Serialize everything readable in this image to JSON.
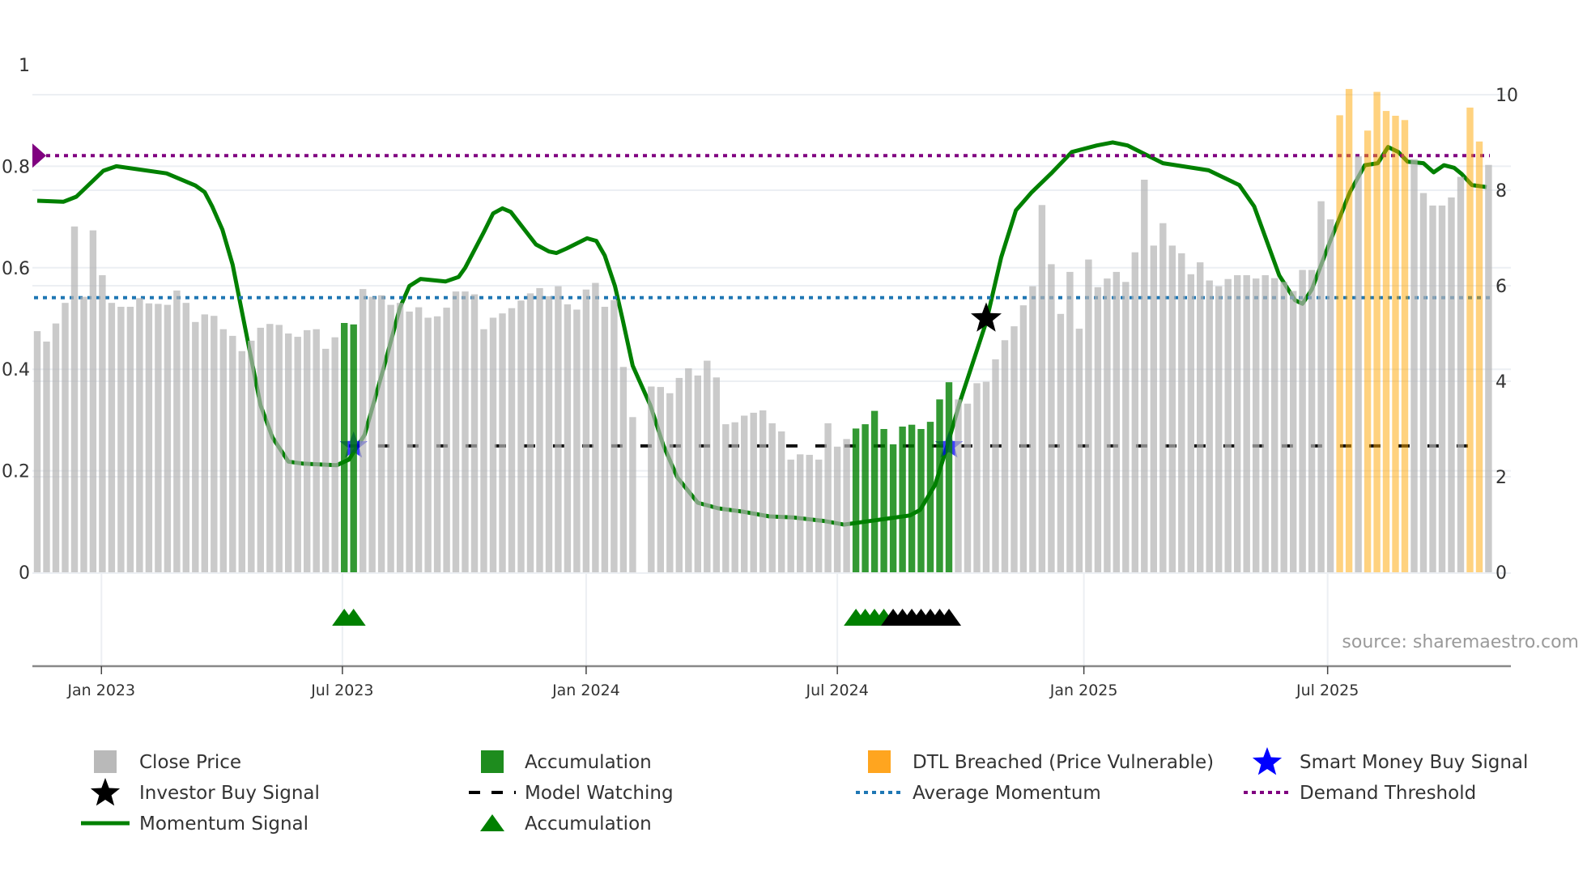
{
  "source_text": "source: sharemaestro.com",
  "colors": {
    "close": "#b4b4b4",
    "accumulation_bar": "#008000",
    "dtl": "#ffa500",
    "momentum": "#008000",
    "average_momentum": "#1f77b4",
    "demand_threshold": "#800080",
    "smart_money": "#0000ff",
    "investor": "#000000",
    "model_watching": "#111111"
  },
  "legend": [
    {
      "label": "Close Price",
      "icon": "gray-square-icon"
    },
    {
      "label": "Accumulation",
      "icon": "green-square-icon"
    },
    {
      "label": "DTL Breached (Price Vulnerable)",
      "icon": "orange-square-icon"
    },
    {
      "label": "Smart Money Buy Signal",
      "icon": "blue-star-icon"
    },
    {
      "label": "Investor Buy Signal",
      "icon": "black-star-icon"
    },
    {
      "label": "Model Watching",
      "icon": "dashed-line-icon"
    },
    {
      "label": "Average Momentum",
      "icon": "blue-dotted-line-icon"
    },
    {
      "label": "Demand Threshold",
      "icon": "purple-dotted-line-icon"
    },
    {
      "label": "Momentum Signal",
      "icon": "green-line-icon"
    },
    {
      "label": "Accumulation",
      "icon": "green-triangle-icon"
    }
  ],
  "chart_data": {
    "type": "bar",
    "x_unit": "week index (weekly bars)",
    "xticks": [
      {
        "label": "Jan 2023",
        "week": 6.9
      },
      {
        "label": "Jul 2023",
        "week": 32.8
      },
      {
        "label": "Jan 2024",
        "week": 59.0
      },
      {
        "label": "Jul 2024",
        "week": 86.0
      },
      {
        "label": "Jan 2025",
        "week": 112.5
      },
      {
        "label": "Jul 2025",
        "week": 138.7
      }
    ],
    "y_left": {
      "ylim": [
        0,
        1
      ],
      "ticks": [
        "0",
        "0.2",
        "0.4",
        "0.6",
        "0.8",
        "1"
      ],
      "tick_values": [
        0,
        0.2,
        0.4,
        0.6,
        0.8,
        1
      ]
    },
    "y_right": {
      "ylim": [
        0,
        10
      ],
      "ticks": [
        "0",
        "2",
        "4",
        "6",
        "8",
        "10"
      ],
      "tick_values": [
        0,
        2,
        4,
        6,
        8,
        10
      ]
    },
    "close_price": [
      5.05,
      4.83,
      5.21,
      5.64,
      7.24,
      5.77,
      7.16,
      6.22,
      5.64,
      5.56,
      5.56,
      5.74,
      5.63,
      5.62,
      5.6,
      5.9,
      5.64,
      5.24,
      5.4,
      5.37,
      5.09,
      4.95,
      4.63,
      4.85,
      5.12,
      5.2,
      5.18,
      5.0,
      4.93,
      5.07,
      5.09,
      4.68,
      4.92,
      5.22,
      5.19,
      5.93,
      5.77,
      5.8,
      5.6,
      5.64,
      5.46,
      5.55,
      5.33,
      5.36,
      5.54,
      5.88,
      5.88,
      5.82,
      5.09,
      5.33,
      5.42,
      5.53,
      5.69,
      5.84,
      5.95,
      5.78,
      5.99,
      5.61,
      5.5,
      5.92,
      6.06,
      5.56,
      5.7,
      4.3,
      3.25,
      null,
      3.89,
      3.88,
      3.75,
      4.07,
      4.27,
      4.12,
      4.43,
      4.08,
      3.1,
      3.14,
      3.28,
      3.34,
      3.39,
      3.12,
      2.95,
      2.36,
      2.47,
      2.46,
      2.36,
      3.12,
      2.63,
      2.79,
      3.01,
      3.1,
      3.38,
      3.0,
      2.68,
      3.05,
      3.09,
      3.0,
      3.15,
      3.62,
      3.98,
      3.62,
      3.53,
      3.96,
      3.99,
      4.46,
      4.86,
      5.15,
      5.59,
      5.99,
      7.69,
      6.45,
      5.41,
      6.29,
      5.1,
      6.55,
      5.97,
      6.15,
      6.29,
      6.08,
      6.7,
      8.22,
      6.84,
      7.31,
      6.84,
      6.68,
      6.24,
      6.49,
      6.11,
      5.99,
      6.14,
      6.22,
      6.22,
      6.15,
      6.22,
      6.16,
      6.08,
      5.89,
      6.33,
      6.33,
      7.77,
      7.39,
      9.57,
      10.12,
      8.71,
      9.25,
      10.06,
      9.66,
      9.56,
      9.47,
      8.65,
      7.94,
      7.68,
      7.68,
      7.85,
      8.28,
      9.73,
      9.02,
      8.53
    ],
    "accumulation_weeks": [
      33,
      34,
      88,
      89,
      90,
      91,
      92,
      93,
      94,
      95,
      96,
      97,
      98
    ],
    "dtl_breached_weeks": [
      140,
      141,
      143,
      144,
      145,
      146,
      147,
      154,
      155
    ],
    "momentum_signal": [
      [
        0,
        0.732
      ],
      [
        2.8,
        0.73
      ],
      [
        4.2,
        0.74
      ],
      [
        7.1,
        0.791
      ],
      [
        8.5,
        0.8
      ],
      [
        13.9,
        0.786
      ],
      [
        17.0,
        0.762
      ],
      [
        18.0,
        0.749
      ],
      [
        18.8,
        0.721
      ],
      [
        19.9,
        0.675
      ],
      [
        21.0,
        0.606
      ],
      [
        22.6,
        0.458
      ],
      [
        24.0,
        0.329
      ],
      [
        25.3,
        0.265
      ],
      [
        27.0,
        0.218
      ],
      [
        28.6,
        0.214
      ],
      [
        32.2,
        0.211
      ],
      [
        33.5,
        0.222
      ],
      [
        35.2,
        0.271
      ],
      [
        37.3,
        0.407
      ],
      [
        39.0,
        0.522
      ],
      [
        40.0,
        0.564
      ],
      [
        41.2,
        0.578
      ],
      [
        43.9,
        0.573
      ],
      [
        45.3,
        0.582
      ],
      [
        46.0,
        0.6
      ],
      [
        48.0,
        0.67
      ],
      [
        49.0,
        0.707
      ],
      [
        50.0,
        0.717
      ],
      [
        50.9,
        0.71
      ],
      [
        53.6,
        0.646
      ],
      [
        55.0,
        0.632
      ],
      [
        55.8,
        0.629
      ],
      [
        56.9,
        0.638
      ],
      [
        59.1,
        0.658
      ],
      [
        60.1,
        0.653
      ],
      [
        61.0,
        0.624
      ],
      [
        62.1,
        0.564
      ],
      [
        62.9,
        0.5
      ],
      [
        64.0,
        0.407
      ],
      [
        65.9,
        0.329
      ],
      [
        67.3,
        0.25
      ],
      [
        68.8,
        0.187
      ],
      [
        71.0,
        0.137
      ],
      [
        73.2,
        0.126
      ],
      [
        76.0,
        0.119
      ],
      [
        78.7,
        0.11
      ],
      [
        81.3,
        0.108
      ],
      [
        84.6,
        0.101
      ],
      [
        86.7,
        0.094
      ],
      [
        89.5,
        0.101
      ],
      [
        93.8,
        0.112
      ],
      [
        94.9,
        0.123
      ],
      [
        96.5,
        0.172
      ],
      [
        97.6,
        0.236
      ],
      [
        99.2,
        0.337
      ],
      [
        102.0,
        0.493
      ],
      [
        103.6,
        0.62
      ],
      [
        105.2,
        0.713
      ],
      [
        106.9,
        0.749
      ],
      [
        109.1,
        0.788
      ],
      [
        111.2,
        0.828
      ],
      [
        113.9,
        0.841
      ],
      [
        115.6,
        0.847
      ],
      [
        117.2,
        0.841
      ],
      [
        121.0,
        0.806
      ],
      [
        125.9,
        0.792
      ],
      [
        129.2,
        0.763
      ],
      [
        130.8,
        0.721
      ],
      [
        133.5,
        0.585
      ],
      [
        135.2,
        0.536
      ],
      [
        136.0,
        0.529
      ],
      [
        137.0,
        0.557
      ],
      [
        138.9,
        0.649
      ],
      [
        141.1,
        0.749
      ],
      [
        142.7,
        0.802
      ],
      [
        144.1,
        0.806
      ],
      [
        145.2,
        0.838
      ],
      [
        146.3,
        0.828
      ],
      [
        147.3,
        0.809
      ],
      [
        149.0,
        0.806
      ],
      [
        150.1,
        0.788
      ],
      [
        151.2,
        0.802
      ],
      [
        152.3,
        0.797
      ],
      [
        153.1,
        0.785
      ],
      [
        154.2,
        0.763
      ],
      [
        155.8,
        0.759
      ]
    ],
    "average_momentum": 0.541,
    "demand_threshold": 0.821,
    "model_watching": {
      "value": 0.249,
      "from_week": 33.5,
      "to_week": 155.5
    },
    "smart_money_buy_signals": [
      [
        34,
        0.249
      ],
      [
        98,
        0.249
      ]
    ],
    "investor_buy_signals": [
      [
        102,
        0.5
      ]
    ],
    "accumulation_markers": {
      "green_weeks": [
        33,
        34,
        88,
        89,
        90,
        91
      ],
      "black_weeks": [
        92,
        93,
        94,
        95,
        96,
        97,
        98
      ]
    },
    "legend_position": "bottom"
  }
}
